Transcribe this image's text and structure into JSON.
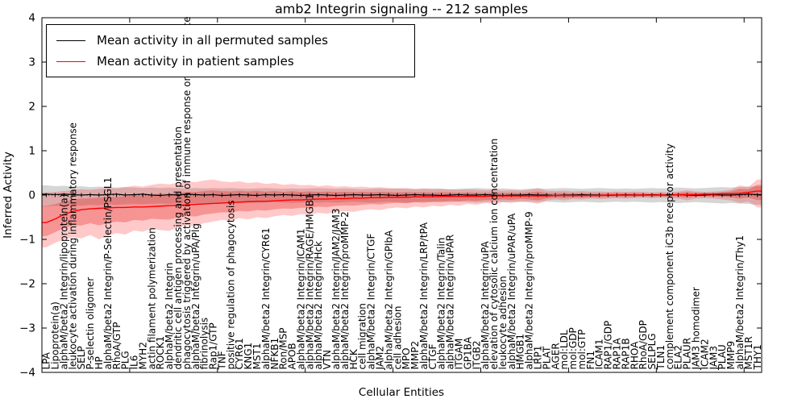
{
  "title": "amb2 Integrin signaling -- 212 samples",
  "legend": {
    "items": [
      {
        "label": "Mean activity in all permuted samples",
        "color": "#000000"
      },
      {
        "label": "Mean activity in patient samples",
        "color": "#ff0000"
      }
    ]
  },
  "colors": {
    "permuted_line": "#000000",
    "patient_line": "#ff0000",
    "permuted_band": "rgba(128,128,128,0.32)",
    "patient_band_outer": "rgba(255,30,30,0.24)",
    "patient_band_inner": "rgba(225,25,25,0.30)",
    "axis": "#000000"
  },
  "chart_data": {
    "type": "line",
    "title": "amb2 Integrin signaling -- 212 samples",
    "xlabel": "Cellular Entities",
    "ylabel": "Inferred Activity",
    "ylim": [
      -4,
      4
    ],
    "grid": false,
    "legend_position": "upper left",
    "yticklabels": [
      "4",
      "3",
      "2",
      "1",
      "0",
      "−1",
      "−2",
      "−3",
      "−4"
    ],
    "yticks": [
      4,
      3,
      2,
      1,
      0,
      -1,
      -2,
      -3,
      -4
    ],
    "categories": [
      "LPA",
      "Lipoprotein(a)",
      "alphaM/beta2 Integrin/lipoprotein(a)",
      "leukocyte activation during inflammatory response",
      "SELP",
      "P-selectin oligomer",
      "HP",
      "alphaM/beta2 Integrin/P-Selectin/PSGL1",
      "RhoA/GTP",
      "PLG",
      "IL6",
      "MYH2",
      "actin filament polymerization",
      "ROCK1",
      "alphaM/beta2 Integrin",
      "dendritic cell antigen processing and presentation",
      "phagocytosis triggered by activation of immune response on cell surface",
      "alphaM/beta2 Integrin/uPA/Plg",
      "fibrinolysis",
      "Rap1/GTP",
      "TNF",
      "positive regulation of phagocytosis",
      "CYR61",
      "KNG1",
      "MST1",
      "alphaM/beta2 Integrin/CYR61",
      "NFKB1",
      "Ron/MSP",
      "APOB",
      "alphaM/beta2 Integrin/ICAM1",
      "alphaM/beta2 Integrin/RAGE/HMGB1",
      "alphaM/beta2 Integrin/Hck",
      "VTN",
      "alphaM/beta2 Integrin/JAM2/JAM3",
      "alphaM/beta2 Integrin/proMMP-2",
      "HCK",
      "cell migration",
      "alphaM/beta2 Integrin/CTGF",
      "JAM2",
      "alphaM/beta2 Integrin/GPIbA",
      "cell adhesion",
      "MPO",
      "MMP2",
      "alphaM/beta2 Integrin/LRP/tPA",
      "CTGF",
      "alphaM/beta2 Integrin/Talin",
      "alphaM/beta2 Integrin/uPAR",
      "ITGAM",
      "GP1BA",
      "ITGB2",
      "alphaM/beta2 Integrin/uPA",
      "elevation of cytosolic calcium ion concentration",
      "leukocyte adhesion",
      "alphaM/beta2 Integrin/uPAR/uPA",
      "HMGB1",
      "alphaM/beta2 Integrin/proMMP-9",
      "LRP1",
      "PLAT",
      "AGER",
      "mol:LDL",
      "mol:GDP",
      "mol:GTP",
      "FN1",
      "ICAM1",
      "RAP1/GDP",
      "RAP1A",
      "RAP1B",
      "RHOA",
      "RhoA/GDP",
      "SELPLG",
      "TLN1",
      "complement component iC3b receptor activity",
      "ELA2",
      "PLAUR",
      "JAM3 homodimer",
      "ICAM2",
      "JAM3",
      "PLAU",
      "MMP9",
      "alphaM/beta2 Integrin/Thy1",
      "MST1R",
      "THY1"
    ],
    "series": [
      {
        "name": "Mean activity in all permuted samples",
        "color": "#000000",
        "values": [
          0.02,
          0.01,
          0.02,
          0.01,
          0.0,
          0.01,
          0.0,
          0.01,
          0.02,
          0.0,
          0.01,
          0.02,
          0.0,
          -0.01,
          0.01,
          0.0,
          0.02,
          0.01,
          0.0,
          0.01,
          -0.01,
          0.0,
          0.01,
          0.0,
          -0.01,
          0.01,
          0.0,
          0.01,
          0.0,
          -0.01,
          0.0,
          0.01,
          0.0,
          -0.01,
          0.0,
          0.01,
          0.0,
          0.0,
          0.01,
          0.0,
          -0.01,
          0.0,
          0.01,
          0.0,
          0.0,
          -0.01,
          0.0,
          0.01,
          0.0,
          0.0,
          0.01,
          0.0,
          -0.01,
          0.0,
          0.0,
          0.01,
          0.0,
          0.0,
          -0.01,
          0.0,
          0.0,
          0.01,
          0.0,
          0.0,
          -0.01,
          0.0,
          0.01,
          0.0,
          0.0,
          0.01,
          0.0,
          0.0,
          0.01,
          0.0,
          -0.01,
          0.0,
          0.01,
          0.0,
          0.0,
          0.01,
          0.02,
          0.01
        ]
      },
      {
        "name": "Mean activity in patient samples",
        "color": "#ff0000",
        "values": [
          -0.62,
          -0.54,
          -0.44,
          -0.37,
          -0.33,
          -0.31,
          -0.3,
          -0.29,
          -0.28,
          -0.28,
          -0.27,
          -0.27,
          -0.26,
          -0.25,
          -0.24,
          -0.23,
          -0.22,
          -0.21,
          -0.2,
          -0.19,
          -0.18,
          -0.17,
          -0.16,
          -0.15,
          -0.14,
          -0.14,
          -0.13,
          -0.12,
          -0.11,
          -0.11,
          -0.1,
          -0.09,
          -0.09,
          -0.08,
          -0.08,
          -0.07,
          -0.07,
          -0.06,
          -0.06,
          -0.05,
          -0.05,
          -0.05,
          -0.04,
          -0.04,
          -0.04,
          -0.03,
          -0.03,
          -0.03,
          -0.03,
          -0.03,
          -0.03,
          -0.02,
          -0.02,
          -0.02,
          -0.02,
          -0.02,
          -0.02,
          -0.02,
          -0.01,
          -0.01,
          -0.01,
          -0.01,
          -0.01,
          -0.01,
          0.0,
          0.0,
          0.0,
          0.0,
          0.0,
          0.0,
          0.0,
          0.0,
          0.01,
          0.01,
          0.01,
          0.02,
          0.02,
          0.03,
          0.03,
          0.04,
          0.06,
          0.09
        ]
      }
    ],
    "bands": [
      {
        "name": "permuted-range",
        "upper": [
          0.22,
          0.2,
          0.21,
          0.19,
          0.2,
          0.18,
          0.19,
          0.18,
          0.17,
          0.18,
          0.17,
          0.16,
          0.17,
          0.16,
          0.17,
          0.16,
          0.15,
          0.16,
          0.15,
          0.16,
          0.15,
          0.16,
          0.15,
          0.14,
          0.15,
          0.16,
          0.15,
          0.14,
          0.15,
          0.14,
          0.15,
          0.16,
          0.15,
          0.14,
          0.15,
          0.14,
          0.13,
          0.14,
          0.15,
          0.14,
          0.15,
          0.14,
          0.13,
          0.14,
          0.15,
          0.14,
          0.13,
          0.14,
          0.15,
          0.16,
          0.15,
          0.14,
          0.15,
          0.14,
          0.13,
          0.14,
          0.15,
          0.14,
          0.15,
          0.16,
          0.15,
          0.14,
          0.15,
          0.16,
          0.15,
          0.14,
          0.15,
          0.14,
          0.15,
          0.16,
          0.15,
          0.16,
          0.17,
          0.16,
          0.15,
          0.16,
          0.17,
          0.18,
          0.17,
          0.18,
          0.19,
          0.2
        ],
        "lower": [
          -0.26,
          -0.24,
          -0.25,
          -0.23,
          -0.24,
          -0.22,
          -0.23,
          -0.21,
          -0.22,
          -0.21,
          -0.2,
          -0.21,
          -0.2,
          -0.19,
          -0.2,
          -0.19,
          -0.18,
          -0.19,
          -0.18,
          -0.19,
          -0.18,
          -0.17,
          -0.18,
          -0.17,
          -0.18,
          -0.17,
          -0.16,
          -0.17,
          -0.18,
          -0.17,
          -0.16,
          -0.17,
          -0.16,
          -0.17,
          -0.16,
          -0.15,
          -0.16,
          -0.17,
          -0.16,
          -0.15,
          -0.16,
          -0.17,
          -0.16,
          -0.15,
          -0.16,
          -0.15,
          -0.16,
          -0.15,
          -0.16,
          -0.17,
          -0.16,
          -0.15,
          -0.16,
          -0.15,
          -0.16,
          -0.15,
          -0.16,
          -0.15,
          -0.16,
          -0.17,
          -0.16,
          -0.15,
          -0.16,
          -0.17,
          -0.16,
          -0.15,
          -0.16,
          -0.15,
          -0.16,
          -0.17,
          -0.16,
          -0.17,
          -0.18,
          -0.17,
          -0.16,
          -0.17,
          -0.18,
          -0.19,
          -0.18,
          -0.19,
          -0.2,
          -0.22
        ]
      },
      {
        "name": "patient-range",
        "upper": [
          0.06,
          0.07,
          0.09,
          0.11,
          0.13,
          0.12,
          0.14,
          0.16,
          0.15,
          0.18,
          0.21,
          0.19,
          0.23,
          0.26,
          0.24,
          0.28,
          0.31,
          0.29,
          0.33,
          0.35,
          0.31,
          0.29,
          0.31,
          0.27,
          0.29,
          0.25,
          0.27,
          0.23,
          0.25,
          0.22,
          0.23,
          0.2,
          0.22,
          0.19,
          0.2,
          0.18,
          0.19,
          0.17,
          0.18,
          0.16,
          0.15,
          0.16,
          0.14,
          0.15,
          0.13,
          0.14,
          0.13,
          0.12,
          0.13,
          0.12,
          0.11,
          0.12,
          0.1,
          0.11,
          0.1,
          0.12,
          0.16,
          0.1,
          0.09,
          0.1,
          0.08,
          0.09,
          0.08,
          0.08,
          0.07,
          0.08,
          0.07,
          0.08,
          0.07,
          0.06,
          0.07,
          0.06,
          0.08,
          0.11,
          0.08,
          0.07,
          0.08,
          0.09,
          0.12,
          0.22,
          0.18,
          0.35
        ],
        "lower": [
          -1.18,
          -1.08,
          -1.0,
          -0.95,
          -0.98,
          -0.9,
          -1.0,
          -0.92,
          -0.86,
          -0.89,
          -0.8,
          -0.83,
          -0.76,
          -0.79,
          -0.81,
          -0.73,
          -0.68,
          -0.71,
          -0.63,
          -0.6,
          -0.56,
          -0.58,
          -0.52,
          -0.55,
          -0.5,
          -0.52,
          -0.48,
          -0.45,
          -0.47,
          -0.43,
          -0.44,
          -0.4,
          -0.42,
          -0.38,
          -0.36,
          -0.38,
          -0.34,
          -0.32,
          -0.34,
          -0.3,
          -0.28,
          -0.3,
          -0.26,
          -0.28,
          -0.24,
          -0.26,
          -0.22,
          -0.24,
          -0.2,
          -0.22,
          -0.18,
          -0.2,
          -0.16,
          -0.18,
          -0.14,
          -0.16,
          -0.2,
          -0.12,
          -0.1,
          -0.12,
          -0.09,
          -0.1,
          -0.08,
          -0.09,
          -0.08,
          -0.07,
          -0.08,
          -0.07,
          -0.06,
          -0.07,
          -0.06,
          -0.07,
          -0.08,
          -0.12,
          -0.08,
          -0.07,
          -0.08,
          -0.1,
          -0.12,
          -0.18,
          -0.15,
          -0.28
        ]
      }
    ]
  }
}
